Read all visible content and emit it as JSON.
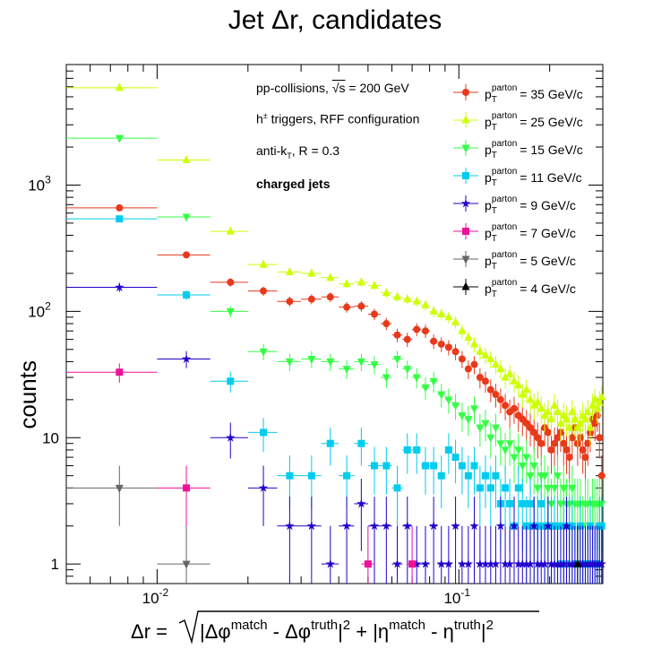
{
  "chart_data": {
    "type": "scatter",
    "title": "Jet Δr, candidates",
    "xlabel": "Δr = √(|Δφ^match - Δφ^truth|² + |η^match - η^truth|²)",
    "ylabel": "counts",
    "x_scale": "log",
    "y_scale": "log",
    "xlim": [
      0.005,
      0.3
    ],
    "ylim": [
      0.7,
      9000
    ],
    "x_tick_labels": [
      "10^-2",
      "10^-1"
    ],
    "y_tick_labels": [
      "1",
      "10",
      "10^2",
      "10^3"
    ],
    "annotations": [
      "pp-collisions, √s = 200 GeV",
      "h± triggers, RFF configuration",
      "anti-kT, R = 0.3",
      "charged jets"
    ],
    "legend_position": "top-right",
    "series": [
      {
        "name": "p_T^parton = 35 GeV/c",
        "color": "#e8391a",
        "marker": "circle",
        "x": [
          0.0075,
          0.0125,
          0.0175,
          0.0225,
          0.0275,
          0.0325,
          0.0375,
          0.0425,
          0.0475,
          0.0525,
          0.0575,
          0.0625,
          0.0675,
          0.0725,
          0.0775,
          0.0825,
          0.0875,
          0.0925,
          0.0975,
          0.1025,
          0.1075,
          0.1125,
          0.1175,
          0.1225,
          0.1275,
          0.1325,
          0.1375,
          0.1425,
          0.1475,
          0.1525,
          0.1575,
          0.1625,
          0.1675,
          0.1725,
          0.1775,
          0.1825,
          0.1875,
          0.1925,
          0.1975,
          0.2025,
          0.2075,
          0.2125,
          0.2175,
          0.2225,
          0.2275,
          0.2325,
          0.2375,
          0.2425,
          0.2475,
          0.2525,
          0.2575,
          0.2625,
          0.2675,
          0.2725,
          0.2775,
          0.2825,
          0.2875,
          0.2925,
          0.2975
        ],
        "y": [
          660,
          280,
          170,
          145,
          120,
          125,
          130,
          108,
          110,
          95,
          80,
          65,
          60,
          72,
          70,
          58,
          55,
          52,
          48,
          42,
          35,
          38,
          30,
          28,
          24,
          22,
          20,
          18,
          16,
          17,
          15,
          14,
          13,
          12,
          11,
          10,
          9,
          12,
          11,
          8,
          9,
          10,
          11,
          9,
          8,
          7,
          10,
          12,
          9,
          10,
          8,
          7,
          9,
          11,
          14,
          13,
          15,
          10,
          5
        ]
      },
      {
        "name": "p_T^parton = 25 GeV/c",
        "color": "#ccff00",
        "marker": "triangle-up",
        "x": [
          0.0075,
          0.0125,
          0.0175,
          0.0225,
          0.0275,
          0.0325,
          0.0375,
          0.0425,
          0.0475,
          0.0525,
          0.0575,
          0.0625,
          0.0675,
          0.0725,
          0.0775,
          0.0825,
          0.0875,
          0.0925,
          0.0975,
          0.1025,
          0.1075,
          0.1125,
          0.1175,
          0.1225,
          0.1275,
          0.1325,
          0.1375,
          0.1425,
          0.1475,
          0.1525,
          0.1575,
          0.1625,
          0.1675,
          0.1725,
          0.1775,
          0.1825,
          0.1875,
          0.1925,
          0.1975,
          0.2025,
          0.2075,
          0.2125,
          0.2175,
          0.2225,
          0.2275,
          0.2325,
          0.2375,
          0.2425,
          0.2475,
          0.2525,
          0.2575,
          0.2625,
          0.2675,
          0.2725,
          0.2775,
          0.2825,
          0.2875,
          0.2925,
          0.2975
        ],
        "y": [
          5900,
          1580,
          430,
          235,
          205,
          200,
          185,
          165,
          170,
          160,
          140,
          130,
          125,
          120,
          112,
          100,
          95,
          90,
          82,
          70,
          62,
          55,
          48,
          45,
          42,
          38,
          35,
          30,
          32,
          28,
          26,
          22,
          24,
          20,
          18,
          19,
          17,
          15,
          16,
          14,
          18,
          16,
          13,
          15,
          14,
          12,
          16,
          14,
          12,
          13,
          15,
          14,
          16,
          12,
          18,
          20,
          17,
          19,
          21
        ]
      },
      {
        "name": "p_T^parton = 15 GeV/c",
        "color": "#33ff44",
        "marker": "triangle-down",
        "x": [
          0.0075,
          0.0125,
          0.0175,
          0.0225,
          0.0275,
          0.0325,
          0.0375,
          0.0425,
          0.0475,
          0.0525,
          0.0575,
          0.0625,
          0.0675,
          0.0725,
          0.0775,
          0.0825,
          0.0875,
          0.0925,
          0.0975,
          0.1025,
          0.1075,
          0.1125,
          0.1175,
          0.1225,
          0.1275,
          0.1325,
          0.1375,
          0.1425,
          0.1475,
          0.1525,
          0.1575,
          0.1625,
          0.1675,
          0.1725,
          0.1775,
          0.1825,
          0.1875,
          0.1925,
          0.1975,
          0.2025,
          0.2075,
          0.2125,
          0.2175,
          0.2225,
          0.2275,
          0.2325,
          0.2375,
          0.2425,
          0.2475,
          0.2525,
          0.2575,
          0.2625,
          0.2675,
          0.2725,
          0.2775,
          0.2825,
          0.2875,
          0.2925,
          0.2975
        ],
        "y": [
          2350,
          560,
          100,
          48,
          40,
          42,
          40,
          35,
          40,
          38,
          30,
          42,
          35,
          30,
          25,
          28,
          22,
          20,
          18,
          15,
          14,
          17,
          12,
          13,
          10,
          12,
          9,
          8,
          9,
          7,
          8,
          6,
          7,
          5,
          6,
          4,
          5,
          5,
          4,
          3,
          4,
          5,
          3,
          4,
          3,
          3,
          4,
          3,
          3,
          3,
          2,
          3,
          3,
          2,
          3,
          3,
          3,
          3,
          3
        ]
      },
      {
        "name": "p_T^parton = 11 GeV/c",
        "color": "#00ccee",
        "marker": "square",
        "x": [
          0.0075,
          0.0125,
          0.0175,
          0.0225,
          0.0275,
          0.0325,
          0.0375,
          0.0425,
          0.0475,
          0.0525,
          0.0575,
          0.0625,
          0.0675,
          0.0725,
          0.0775,
          0.0825,
          0.0875,
          0.0925,
          0.0975,
          0.1025,
          0.1075,
          0.1125,
          0.1175,
          0.1225,
          0.1275,
          0.1325,
          0.1375,
          0.1425,
          0.1475,
          0.1525,
          0.1575,
          0.1625,
          0.1675,
          0.1725,
          0.1775,
          0.1825,
          0.1875,
          0.1925,
          0.1975,
          0.2025,
          0.2075,
          0.2125,
          0.2175,
          0.2225,
          0.2275,
          0.2325,
          0.2375,
          0.2425,
          0.2475,
          0.2525,
          0.2575,
          0.2625,
          0.2675,
          0.2725,
          0.2775,
          0.2825,
          0.2875,
          0.2925,
          0.2975
        ],
        "y": [
          540,
          135,
          28,
          11,
          5,
          5,
          9,
          5,
          9,
          6,
          6,
          4,
          8,
          8,
          6,
          6,
          5,
          8,
          7,
          6,
          5,
          6,
          4,
          5,
          4,
          5,
          3,
          4,
          3,
          2,
          4,
          3,
          2,
          3,
          2,
          2,
          3,
          2,
          2,
          2,
          2,
          2,
          1,
          2,
          1,
          2,
          2,
          1,
          1,
          2,
          1,
          1,
          1,
          2,
          1,
          1,
          1,
          2,
          2
        ]
      },
      {
        "name": "p_T^parton = 9 GeV/c",
        "color": "#2200cc",
        "marker": "star",
        "x": [
          0.0075,
          0.0125,
          0.0175,
          0.0225,
          0.0275,
          0.0325,
          0.0375,
          0.0425,
          0.0475,
          0.0525,
          0.0575,
          0.0625,
          0.0675,
          0.0725,
          0.0775,
          0.0825,
          0.0875,
          0.0925,
          0.0975,
          0.1025,
          0.1075,
          0.1125,
          0.1175,
          0.1225,
          0.1275,
          0.1325,
          0.1375,
          0.1425,
          0.1475,
          0.1525,
          0.1575,
          0.1625,
          0.1675,
          0.1725,
          0.1775,
          0.1825,
          0.1875,
          0.1925,
          0.1975,
          0.2025,
          0.2075,
          0.2125,
          0.2175,
          0.2225,
          0.2275,
          0.2325,
          0.2375,
          0.2425,
          0.2475,
          0.2525,
          0.2575,
          0.2625,
          0.2675,
          0.2725,
          0.2775,
          0.2825,
          0.2875,
          0.2925,
          0.2975
        ],
        "y": [
          155,
          42,
          10,
          4,
          2,
          2,
          1,
          2,
          3,
          2,
          2,
          1,
          2,
          1,
          1,
          2,
          1,
          1,
          2,
          1,
          1,
          2,
          1,
          1,
          1,
          1,
          2,
          1,
          1,
          2,
          1,
          1,
          1,
          1,
          2,
          1,
          1,
          1,
          2,
          1,
          1,
          1,
          1,
          1,
          2,
          1,
          1,
          1,
          1,
          1,
          1,
          1,
          1,
          1,
          1,
          1,
          1,
          1,
          1
        ]
      },
      {
        "name": "p_T^parton = 7 GeV/c",
        "color": "#ee1199",
        "marker": "square",
        "x": [
          0.0075,
          0.0125,
          0.05,
          0.07
        ],
        "y": [
          33,
          4,
          1,
          1
        ]
      },
      {
        "name": "p_T^parton = 5 GeV/c",
        "color": "#666666",
        "marker": "triangle-down",
        "x": [
          0.0075,
          0.0125
        ],
        "y": [
          4,
          1
        ]
      },
      {
        "name": "p_T^parton = 4 GeV/c",
        "color": "#000000",
        "marker": "triangle-up",
        "x": [
          0.2475
        ],
        "y": [
          1
        ]
      }
    ]
  }
}
